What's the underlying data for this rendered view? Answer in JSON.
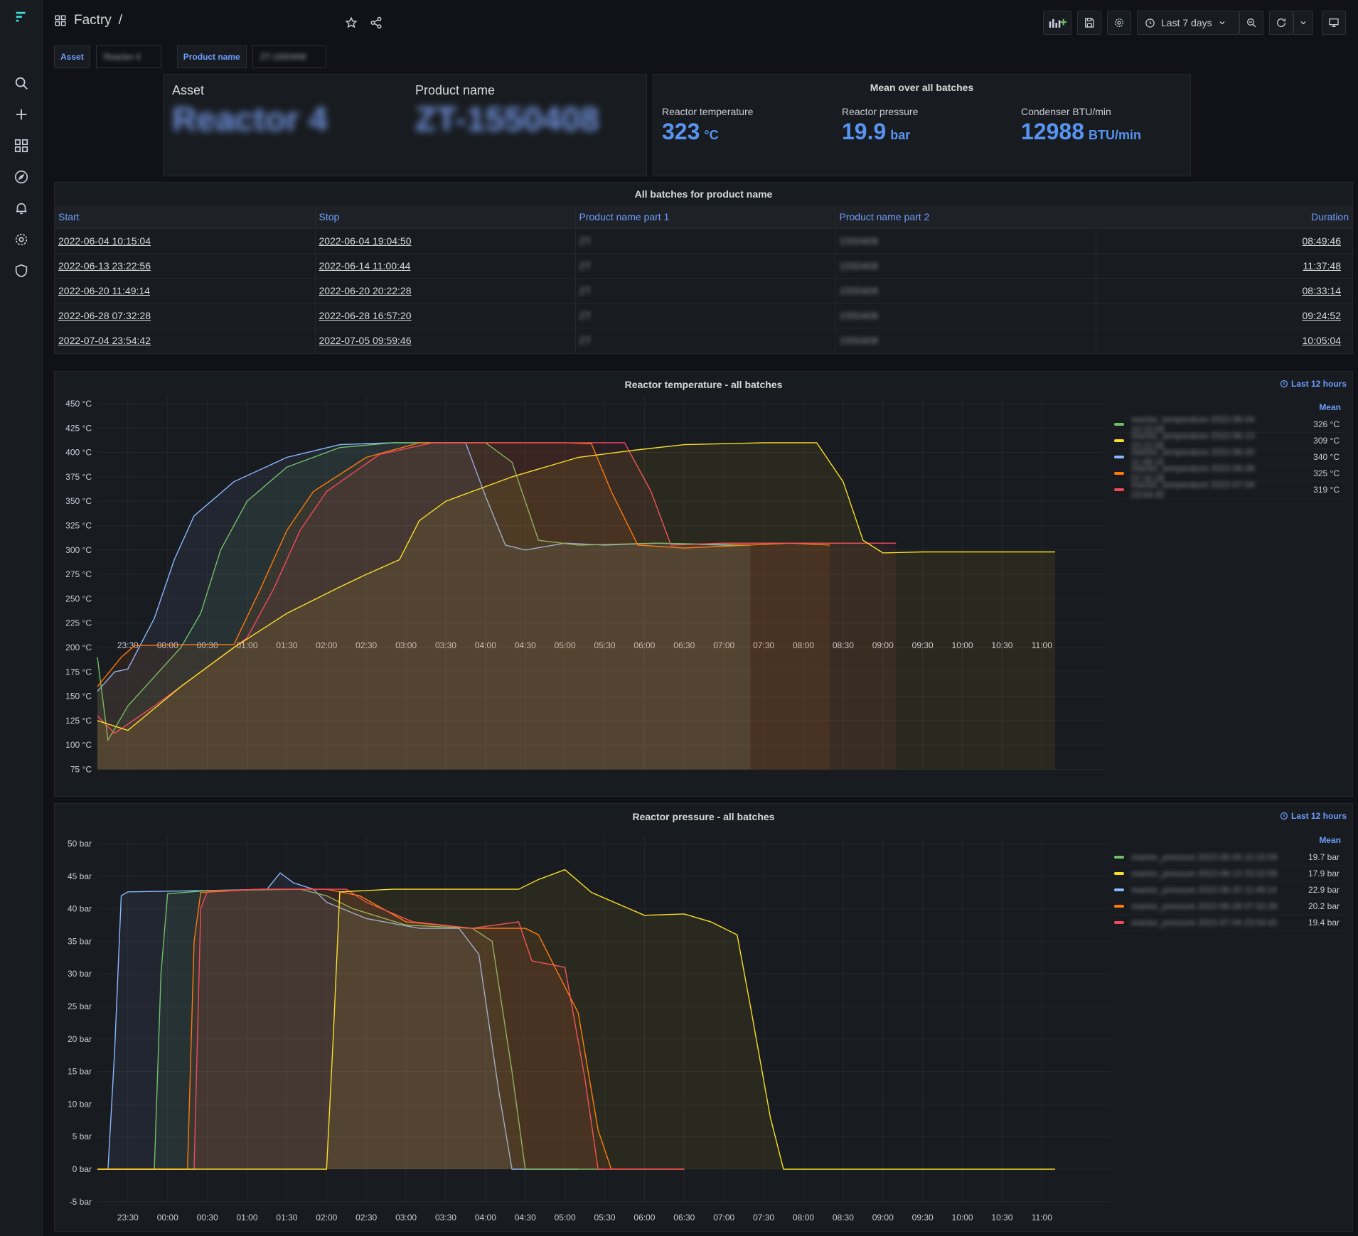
{
  "app": {
    "breadcrumb_folder": "Factry",
    "breadcrumb_sep": "/"
  },
  "toolbar": {
    "time_range": "Last 7 days"
  },
  "variables": {
    "asset_label": "Asset",
    "asset_value": "Reactor 4",
    "product_label": "Product name",
    "product_value": "ZT-1550408"
  },
  "info_panel": {
    "asset_label": "Asset",
    "asset_value": "Reactor 4",
    "product_label": "Product name",
    "product_value": "ZT-1550408"
  },
  "mean_panel": {
    "title": "Mean over all batches",
    "stats": [
      {
        "label": "Reactor temperature",
        "value": "323",
        "unit": "°C"
      },
      {
        "label": "Reactor pressure",
        "value": "19.9",
        "unit": "bar"
      },
      {
        "label": "Condenser BTU/min",
        "value": "12988",
        "unit": "BTU/min"
      }
    ]
  },
  "batches_table": {
    "title": "All batches for product name",
    "columns": [
      "Start",
      "Stop",
      "Product name part 1",
      "Product name part 2",
      "Duration"
    ],
    "rows": [
      [
        "2022-06-04 10:15:04",
        "2022-06-04 19:04:50",
        "ZT",
        "1550408",
        "08:49:46"
      ],
      [
        "2022-06-13 23:22:56",
        "2022-06-14 11:00:44",
        "ZT",
        "1550408",
        "11:37:48"
      ],
      [
        "2022-06-20 11:49:14",
        "2022-06-20 20:22:28",
        "ZT",
        "1550408",
        "08:33:14"
      ],
      [
        "2022-06-28 07:32:28",
        "2022-06-28 16:57:20",
        "ZT",
        "1550408",
        "09:24:52"
      ],
      [
        "2022-07-04 23:54:42",
        "2022-07-05 09:59:46",
        "ZT",
        "1550408",
        "10:05:04"
      ]
    ]
  },
  "temp_panel": {
    "title": "Reactor temperature - all batches",
    "time_tag": "Last 12 hours",
    "legend_header": "Mean",
    "legend": [
      {
        "name": "reactor_temperature 2022-06-04 10:15:04",
        "mean": "326 °C",
        "color": "#73bf69"
      },
      {
        "name": "reactor_temperature 2022-06-13 23:22:56",
        "mean": "309 °C",
        "color": "#fade2a"
      },
      {
        "name": "reactor_temperature 2022-06-20 11:49:14",
        "mean": "340 °C",
        "color": "#8ab8ff"
      },
      {
        "name": "reactor_temperature 2022-06-28 07:32:28",
        "mean": "325 °C",
        "color": "#ff780a"
      },
      {
        "name": "reactor_temperature 2022-07-04 23:54:42",
        "mean": "319 °C",
        "color": "#f2495c"
      }
    ]
  },
  "pressure_panel": {
    "title": "Reactor pressure - all batches",
    "time_tag": "Last 12 hours",
    "legend_header": "Mean",
    "legend": [
      {
        "name": "reactor_pressure 2022-06-04 10:15:04",
        "mean": "19.7 bar",
        "color": "#73bf69"
      },
      {
        "name": "reactor_pressure 2022-06-13 23:22:56",
        "mean": "17.9 bar",
        "color": "#fade2a"
      },
      {
        "name": "reactor_pressure 2022-06-20 11:49:14",
        "mean": "22.9 bar",
        "color": "#8ab8ff"
      },
      {
        "name": "reactor_pressure 2022-06-28 07:32:28",
        "mean": "20.2 bar",
        "color": "#ff780a"
      },
      {
        "name": "reactor_pressure 2022-07-04 23:54:42",
        "mean": "19.4 bar",
        "color": "#f2495c"
      }
    ]
  },
  "chart_data": [
    {
      "type": "line",
      "title": "Reactor temperature - all batches",
      "x_ticks": [
        "23:30",
        "00:00",
        "00:30",
        "01:00",
        "01:30",
        "02:00",
        "02:30",
        "03:00",
        "03:30",
        "04:00",
        "04:30",
        "05:00",
        "05:30",
        "06:00",
        "06:30",
        "07:00",
        "07:30",
        "08:00",
        "08:30",
        "09:00",
        "09:30",
        "10:00",
        "10:30",
        "11:00"
      ],
      "y_ticks": [
        "450 °C",
        "425 °C",
        "400 °C",
        "375 °C",
        "350 °C",
        "325 °C",
        "300 °C",
        "275 °C",
        "250 °C",
        "225 °C",
        "200 °C",
        "175 °C",
        "150 °C",
        "125 °C",
        "100 °C",
        "75 °C"
      ],
      "ylim": [
        75,
        450
      ],
      "x_range_minutes": [
        -23,
        707
      ],
      "series": [
        {
          "color": "#8ab8ff",
          "points": [
            [
              -23,
              155
            ],
            [
              -10,
              175
            ],
            [
              0,
              178
            ],
            [
              20,
              230
            ],
            [
              35,
              290
            ],
            [
              50,
              335
            ],
            [
              80,
              370
            ],
            [
              120,
              395
            ],
            [
              160,
              408
            ],
            [
              200,
              410
            ],
            [
              250,
              410
            ],
            [
              255,
              410
            ],
            [
              270,
              355
            ],
            [
              285,
              305
            ],
            [
              300,
              300
            ],
            [
              330,
              307
            ],
            [
              360,
              305
            ],
            [
              400,
              307
            ],
            [
              450,
              305
            ],
            [
              470,
              305
            ]
          ]
        },
        {
          "color": "#73bf69",
          "points": [
            [
              -23,
              190
            ],
            [
              -15,
              105
            ],
            [
              0,
              140
            ],
            [
              40,
              200
            ],
            [
              55,
              235
            ],
            [
              70,
              300
            ],
            [
              90,
              350
            ],
            [
              120,
              385
            ],
            [
              160,
              405
            ],
            [
              200,
              410
            ],
            [
              230,
              410
            ],
            [
              270,
              410
            ],
            [
              290,
              390
            ],
            [
              310,
              310
            ],
            [
              340,
              305
            ],
            [
              400,
              307
            ],
            [
              470,
              305
            ]
          ]
        },
        {
          "color": "#ff780a",
          "points": [
            [
              -23,
              160
            ],
            [
              -5,
              190
            ],
            [
              5,
              202
            ],
            [
              50,
              203
            ],
            [
              80,
              203
            ],
            [
              100,
              260
            ],
            [
              120,
              320
            ],
            [
              140,
              360
            ],
            [
              180,
              395
            ],
            [
              220,
              410
            ],
            [
              280,
              410
            ],
            [
              330,
              410
            ],
            [
              350,
              409
            ],
            [
              365,
              360
            ],
            [
              385,
              305
            ],
            [
              420,
              302
            ],
            [
              500,
              307
            ],
            [
              530,
              305
            ]
          ]
        },
        {
          "color": "#f2495c",
          "points": [
            [
              -23,
              130
            ],
            [
              -10,
              112
            ],
            [
              20,
              140
            ],
            [
              60,
              180
            ],
            [
              90,
              210
            ],
            [
              110,
              260
            ],
            [
              130,
              320
            ],
            [
              150,
              360
            ],
            [
              190,
              398
            ],
            [
              230,
              410
            ],
            [
              300,
              410
            ],
            [
              350,
              410
            ],
            [
              375,
              410
            ],
            [
              395,
              360
            ],
            [
              410,
              305
            ],
            [
              450,
              307
            ],
            [
              500,
              307
            ],
            [
              580,
              307
            ]
          ]
        },
        {
          "color": "#fade2a",
          "points": [
            [
              -23,
              125
            ],
            [
              0,
              115
            ],
            [
              40,
              160
            ],
            [
              80,
              200
            ],
            [
              120,
              235
            ],
            [
              160,
              262
            ],
            [
              180,
              275
            ],
            [
              205,
              290
            ],
            [
              220,
              330
            ],
            [
              240,
              350
            ],
            [
              290,
              375
            ],
            [
              340,
              395
            ],
            [
              380,
              402
            ],
            [
              420,
              408
            ],
            [
              480,
              410
            ],
            [
              520,
              410
            ],
            [
              540,
              370
            ],
            [
              555,
              310
            ],
            [
              570,
              297
            ],
            [
              600,
              298
            ],
            [
              700,
              298
            ]
          ]
        }
      ]
    },
    {
      "type": "line",
      "title": "Reactor pressure - all batches",
      "x_ticks": [
        "23:30",
        "00:00",
        "00:30",
        "01:00",
        "01:30",
        "02:00",
        "02:30",
        "03:00",
        "03:30",
        "04:00",
        "04:30",
        "05:00",
        "05:30",
        "06:00",
        "06:30",
        "07:00",
        "07:30",
        "08:00",
        "08:30",
        "09:00",
        "09:30",
        "10:00",
        "10:30",
        "11:00"
      ],
      "y_ticks": [
        "50 bar",
        "45 bar",
        "40 bar",
        "35 bar",
        "30 bar",
        "25 bar",
        "20 bar",
        "15 bar",
        "10 bar",
        "5 bar",
        "0 bar",
        "-5 bar"
      ],
      "ylim": [
        -5,
        50
      ],
      "x_range_minutes": [
        -23,
        707
      ],
      "series": [
        {
          "color": "#8ab8ff",
          "points": [
            [
              -23,
              0
            ],
            [
              -15,
              0
            ],
            [
              -10,
              18
            ],
            [
              -5,
              42
            ],
            [
              0,
              42.6
            ],
            [
              60,
              42.8
            ],
            [
              105,
              43
            ],
            [
              115,
              45.5
            ],
            [
              125,
              44
            ],
            [
              140,
              43
            ],
            [
              150,
              41
            ],
            [
              180,
              38.5
            ],
            [
              220,
              37
            ],
            [
              250,
              37
            ],
            [
              265,
              33
            ],
            [
              280,
              12
            ],
            [
              290,
              0
            ],
            [
              340,
              0
            ]
          ]
        },
        {
          "color": "#73bf69",
          "points": [
            [
              -23,
              0
            ],
            [
              20,
              0
            ],
            [
              25,
              30
            ],
            [
              30,
              42.3
            ],
            [
              60,
              42.8
            ],
            [
              130,
              43
            ],
            [
              150,
              42
            ],
            [
              170,
              40
            ],
            [
              210,
              37.5
            ],
            [
              260,
              37
            ],
            [
              275,
              35
            ],
            [
              290,
              15
            ],
            [
              300,
              0
            ],
            [
              360,
              0
            ]
          ]
        },
        {
          "color": "#ff780a",
          "points": [
            [
              -23,
              0
            ],
            [
              45,
              0
            ],
            [
              50,
              35
            ],
            [
              55,
              42.5
            ],
            [
              100,
              43
            ],
            [
              150,
              43
            ],
            [
              175,
              42
            ],
            [
              210,
              38
            ],
            [
              260,
              37
            ],
            [
              300,
              37
            ],
            [
              310,
              36
            ],
            [
              320,
              32
            ],
            [
              340,
              24
            ],
            [
              355,
              6
            ],
            [
              365,
              0
            ],
            [
              420,
              0
            ]
          ]
        },
        {
          "color": "#f2495c",
          "points": [
            [
              -23,
              0
            ],
            [
              50,
              0
            ],
            [
              55,
              40
            ],
            [
              60,
              42.7
            ],
            [
              100,
              43
            ],
            [
              165,
              43
            ],
            [
              180,
              41
            ],
            [
              215,
              38
            ],
            [
              260,
              37
            ],
            [
              295,
              38
            ],
            [
              305,
              32
            ],
            [
              330,
              31
            ],
            [
              345,
              14
            ],
            [
              355,
              0
            ],
            [
              420,
              0
            ]
          ]
        },
        {
          "color": "#fade2a",
          "points": [
            [
              -23,
              0
            ],
            [
              150,
              0
            ],
            [
              155,
              20
            ],
            [
              160,
              42.6
            ],
            [
              200,
              43
            ],
            [
              295,
              43
            ],
            [
              310,
              44.5
            ],
            [
              330,
              46
            ],
            [
              350,
              42.5
            ],
            [
              390,
              39
            ],
            [
              420,
              39.2
            ],
            [
              440,
              38
            ],
            [
              460,
              36
            ],
            [
              470,
              25
            ],
            [
              485,
              8
            ],
            [
              495,
              0
            ],
            [
              700,
              0
            ]
          ]
        }
      ]
    }
  ]
}
